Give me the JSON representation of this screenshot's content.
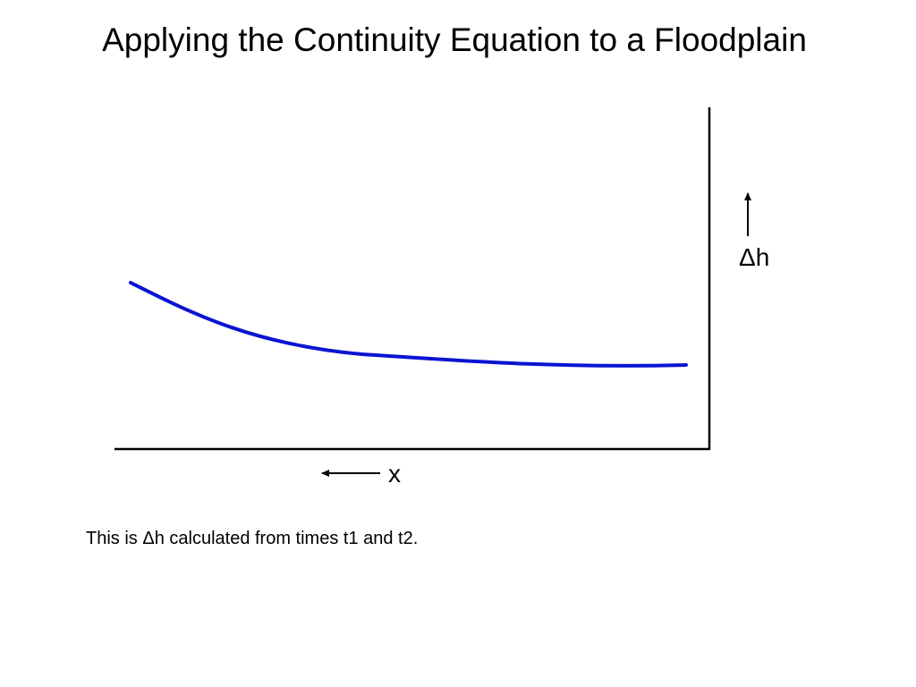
{
  "slide": {
    "title": "Applying the Continuity Equation to a Floodplain",
    "caption": "This is Δh calculated from times t1 and t2."
  },
  "diagram": {
    "vertical_label": "Δh",
    "horizontal_label": "x",
    "curve_color": "#0a14d2",
    "axis_color": "#000000"
  }
}
